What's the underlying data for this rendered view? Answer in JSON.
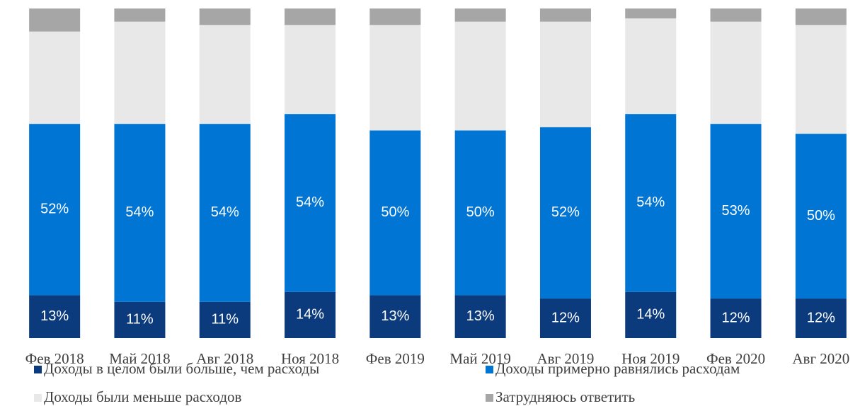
{
  "chart_data": {
    "type": "stacked_bar",
    "categories": [
      "Фев 2018",
      "Май 2018",
      "Авг 2018",
      "Ноя 2018",
      "Фев 2019",
      "Май 2019",
      "Авг 2019",
      "Ноя 2019",
      "Фев 2020",
      "Авг 2020"
    ],
    "ylim": [
      0,
      100
    ],
    "series": [
      {
        "name": "Доходы в целом были больше, чем расходы",
        "color": "#0b3b7d",
        "values": [
          13,
          11,
          11,
          14,
          13,
          13,
          12,
          14,
          12,
          12
        ],
        "value_labels": [
          "13%",
          "11%",
          "11%",
          "14%",
          "13%",
          "13%",
          "12%",
          "14%",
          "12%",
          "12%"
        ]
      },
      {
        "name": "Доходы примерно равнялись расходам",
        "color": "#0075d4",
        "values": [
          52,
          54,
          54,
          54,
          50,
          50,
          52,
          54,
          53,
          50
        ],
        "value_labels": [
          "52%",
          "54%",
          "54%",
          "54%",
          "50%",
          "50%",
          "52%",
          "54%",
          "53%",
          "50%"
        ]
      },
      {
        "name": "Доходы были меньше расходов",
        "color": "#e8e8e8",
        "values": [
          28,
          31,
          30,
          27,
          32,
          33,
          32,
          29,
          31,
          33
        ]
      },
      {
        "name": "Затрудняюсь ответить",
        "color": "#a6a6a6",
        "values": [
          7,
          4,
          5,
          5,
          5,
          4,
          4,
          3,
          4,
          5
        ]
      }
    ]
  }
}
